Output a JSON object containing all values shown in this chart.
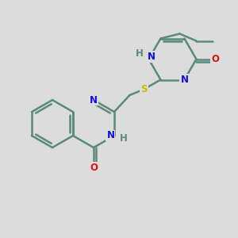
{
  "bg": "#dcdcdc",
  "bond_color": "#5a8a7a",
  "bond_width": 1.8,
  "atom_colors": {
    "N": "#1010dd",
    "O": "#dd1010",
    "S": "#ccbb00",
    "C": "#5a8a7a",
    "H": "#5a8a7a"
  },
  "font_size": 8.5
}
